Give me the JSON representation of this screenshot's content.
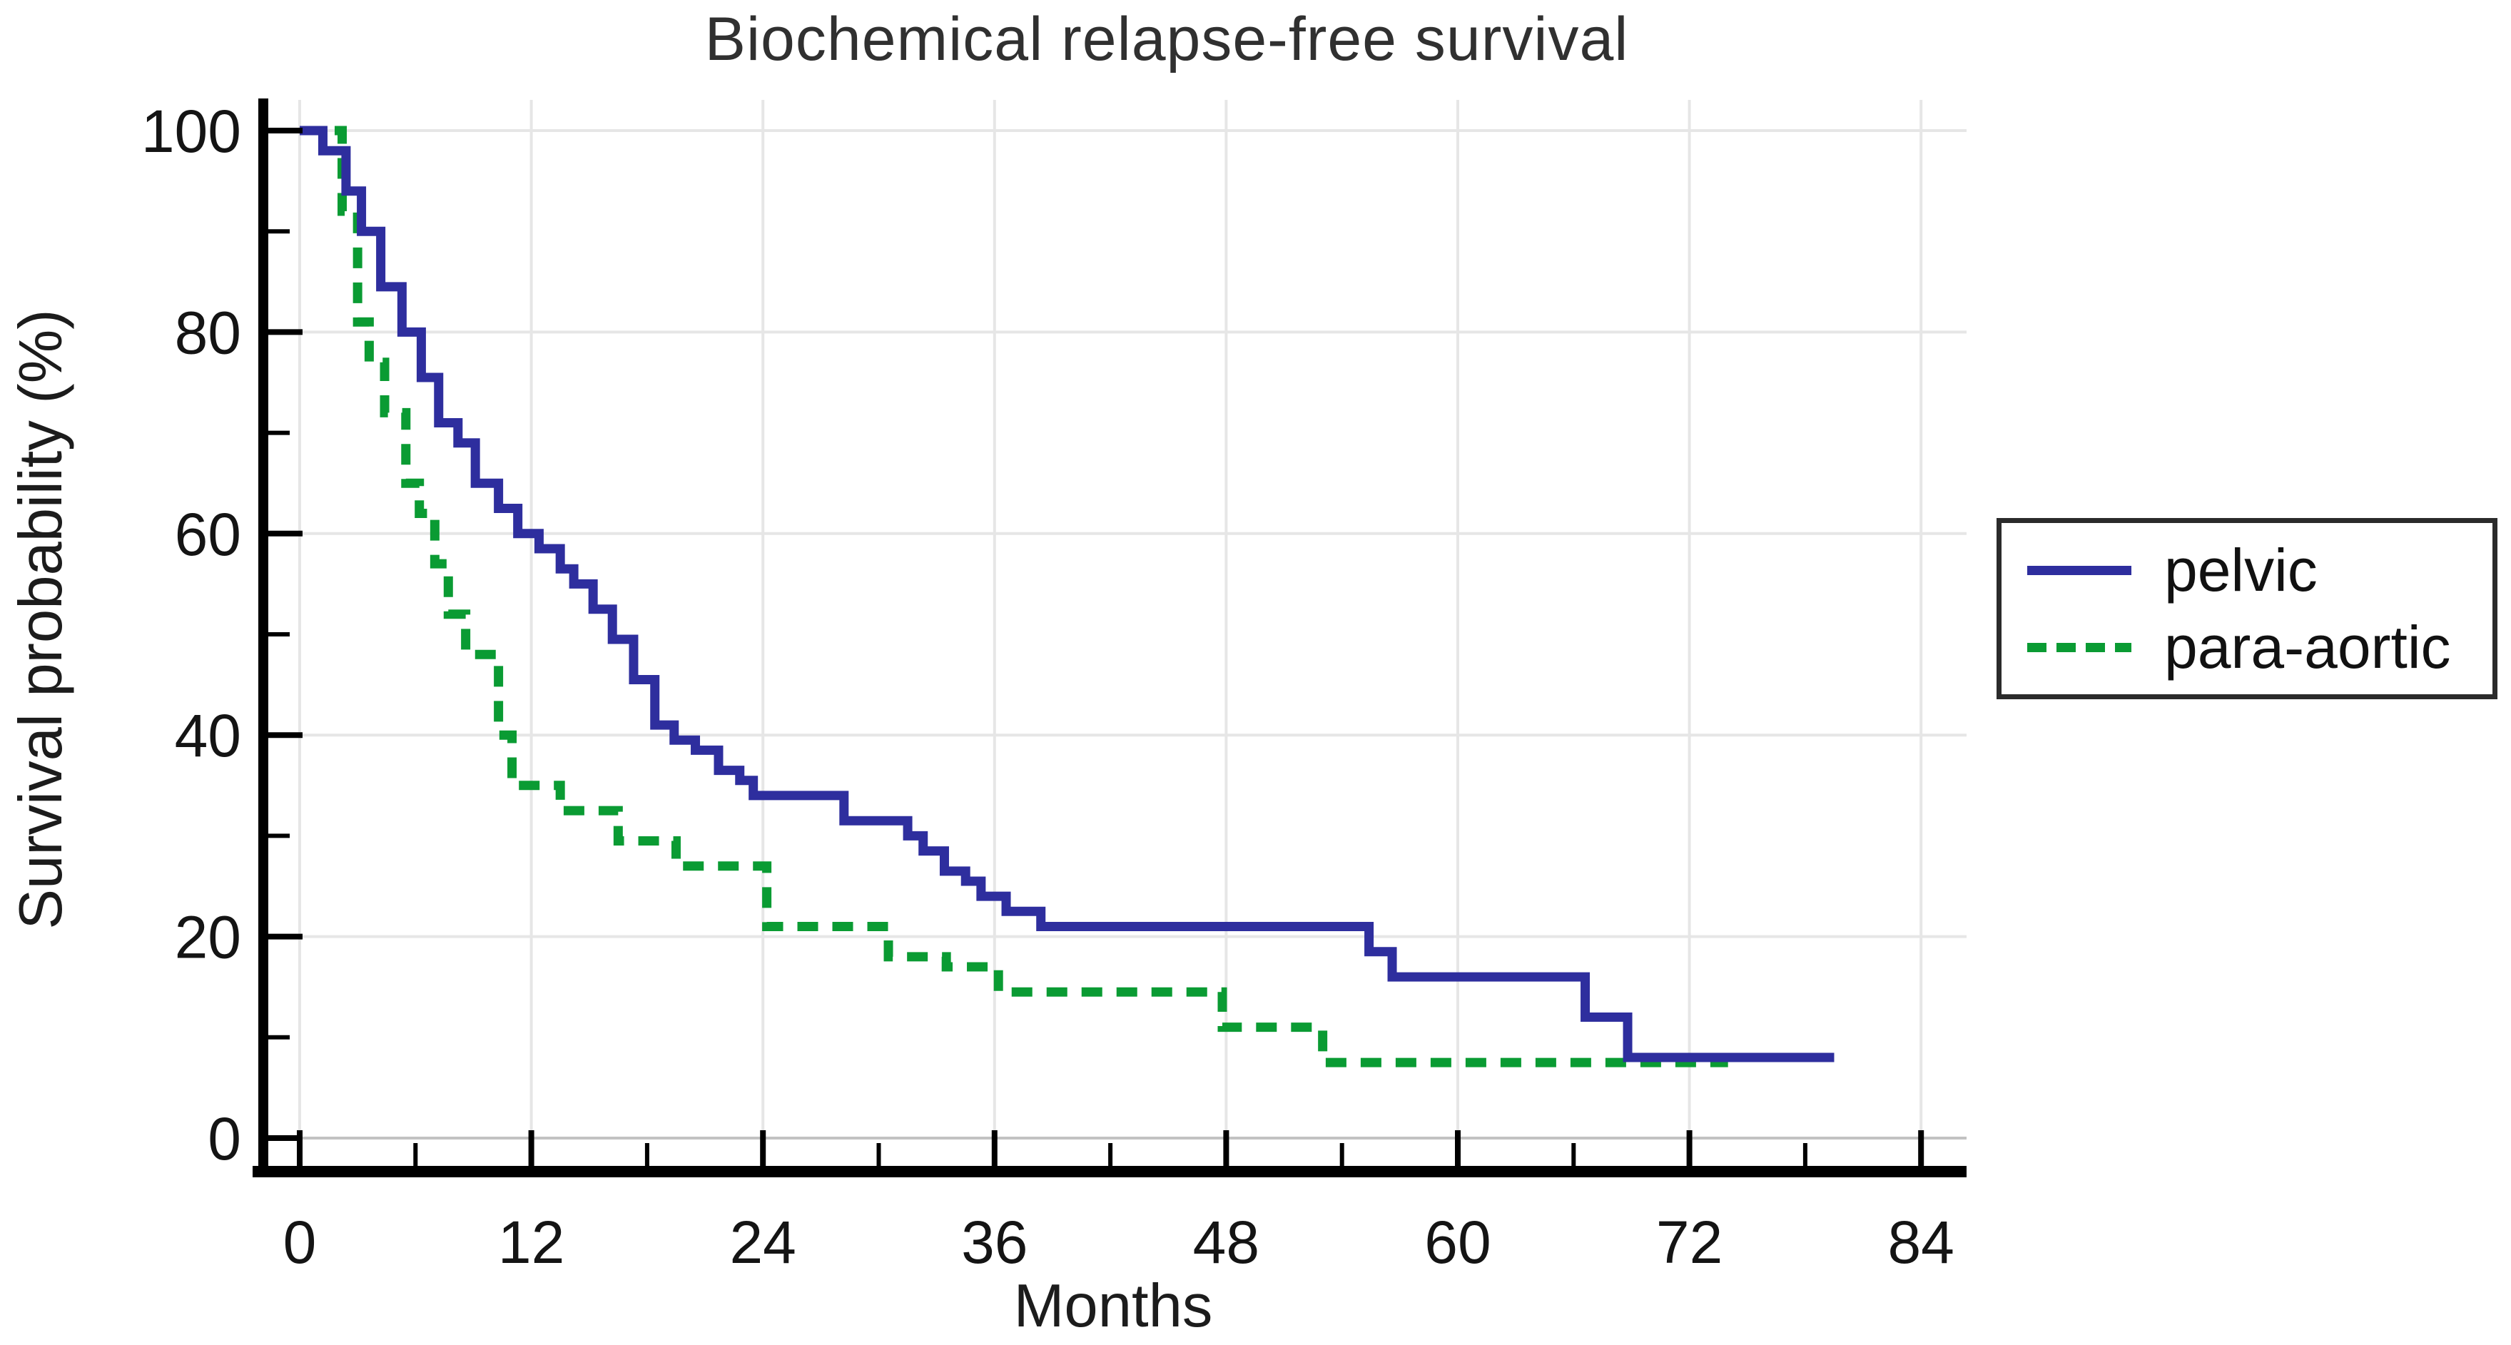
{
  "title": "Biochemical relapse-free survival",
  "axes": {
    "x_label": "Months",
    "y_label": "Survival probability (%)"
  },
  "legend": {
    "items": [
      {
        "label": "pelvic",
        "style": "solid",
        "color": "#2e2e9e"
      },
      {
        "label": "para-aortic",
        "style": "dashed",
        "color": "#0a9b33"
      }
    ]
  },
  "colors": {
    "pelvic_line": "#2e2e9e",
    "para_aortic_line": "#0a9b33",
    "axis": "#000000",
    "grid": "#e6e6e6",
    "grid_zero": "#c2c2c2",
    "tick_text": "#141414",
    "legend_border": "#2b2b2b"
  },
  "chart_data": {
    "type": "line",
    "subtype": "kaplan-meier-step-survival",
    "title": "Biochemical relapse-free survival",
    "xlabel": "Months",
    "ylabel": "Survival probability (%)",
    "xlim": [
      0,
      87
    ],
    "ylim": [
      0,
      100
    ],
    "xticks": [
      0,
      12,
      24,
      36,
      48,
      60,
      72,
      84
    ],
    "x_minor_ticks": [
      6,
      18,
      30,
      42,
      54,
      66,
      78
    ],
    "yticks": [
      0,
      20,
      40,
      60,
      80,
      100
    ],
    "y_minor_ticks": [
      10,
      30,
      50,
      70,
      90
    ],
    "grid": true,
    "legend_position": "right",
    "series": [
      {
        "name": "pelvic",
        "color": "#2e2e9e",
        "style": "solid",
        "end_month": 79.5,
        "steps": [
          [
            0,
            100
          ],
          [
            1.2,
            98
          ],
          [
            2.4,
            94
          ],
          [
            3.2,
            90
          ],
          [
            4.2,
            84.5
          ],
          [
            5.3,
            80
          ],
          [
            6.3,
            75.5
          ],
          [
            7.2,
            71
          ],
          [
            8.2,
            69
          ],
          [
            9.1,
            65
          ],
          [
            10.3,
            62.5
          ],
          [
            11.3,
            60
          ],
          [
            12.4,
            58.5
          ],
          [
            13.5,
            56.5
          ],
          [
            14.2,
            55
          ],
          [
            15.2,
            52.5
          ],
          [
            16.2,
            49.5
          ],
          [
            17.3,
            45.5
          ],
          [
            18.4,
            41
          ],
          [
            19.4,
            39.5
          ],
          [
            20.5,
            38.5
          ],
          [
            21.7,
            36.5
          ],
          [
            22.8,
            35.5
          ],
          [
            23.5,
            34
          ],
          [
            28.2,
            31.5
          ],
          [
            31.5,
            30
          ],
          [
            32.3,
            28.5
          ],
          [
            33.4,
            26.5
          ],
          [
            34.5,
            25.5
          ],
          [
            35.3,
            24
          ],
          [
            36.6,
            22.5
          ],
          [
            38.4,
            21
          ],
          [
            55.4,
            18.5
          ],
          [
            56.6,
            16
          ],
          [
            66.6,
            12
          ],
          [
            68.8,
            8
          ]
        ]
      },
      {
        "name": "para-aortic",
        "color": "#0a9b33",
        "style": "dashed",
        "end_month": 74,
        "steps": [
          [
            0,
            100
          ],
          [
            2.2,
            92
          ],
          [
            3.0,
            81
          ],
          [
            3.6,
            77
          ],
          [
            4.4,
            72
          ],
          [
            5.5,
            65
          ],
          [
            6.2,
            62
          ],
          [
            7.0,
            57
          ],
          [
            7.7,
            52
          ],
          [
            8.6,
            48
          ],
          [
            10.3,
            40
          ],
          [
            11.0,
            35
          ],
          [
            13.5,
            32.5
          ],
          [
            16.5,
            29.5
          ],
          [
            19.5,
            27
          ],
          [
            24.2,
            21
          ],
          [
            30.5,
            18
          ],
          [
            33.5,
            17
          ],
          [
            36.2,
            14.5
          ],
          [
            47.8,
            11
          ],
          [
            53.0,
            7.5
          ]
        ]
      }
    ]
  }
}
